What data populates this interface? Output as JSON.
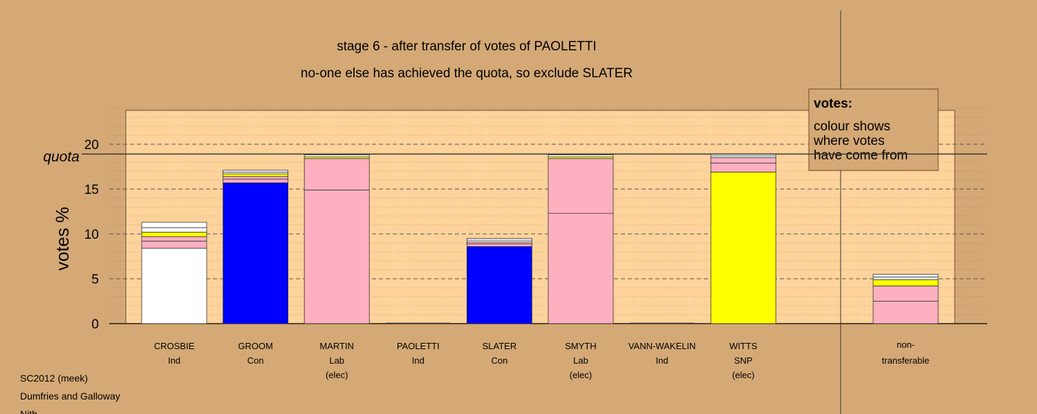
{
  "chart_data": {
    "type": "bar",
    "stacked": true,
    "title": "stage 6 - after transfer of votes of PAOLETTI",
    "subtitle": "no-one else has achieved the quota, so exclude SLATER",
    "ylabel": "votes %",
    "ylim": [
      0,
      24
    ],
    "yticks": [
      "0",
      "5",
      "10",
      "15",
      "20"
    ],
    "quota": {
      "label": "quota",
      "value": 18.9
    },
    "grid": true,
    "legend": {
      "placement": "top-right",
      "title": "votes:",
      "lines": [
        "colour shows",
        "where votes",
        "have come from"
      ]
    },
    "candidates": [
      {
        "name": "CROSBIE",
        "party": "Ind",
        "status": "",
        "segments": [
          {
            "value": 8.4,
            "color": "#ffffff"
          },
          {
            "value": 0.8,
            "color": "#ffb0c0"
          },
          {
            "value": 0.5,
            "color": "#ffb0c0"
          },
          {
            "value": 0.5,
            "color": "#ffff00"
          },
          {
            "value": 0.5,
            "color": "#ffffff"
          },
          {
            "value": 0.6,
            "color": "#ffffff"
          }
        ]
      },
      {
        "name": "GROOM",
        "party": "Con",
        "status": "",
        "segments": [
          {
            "value": 15.7,
            "color": "#0000ff"
          },
          {
            "value": 0.4,
            "color": "#ffb0c0"
          },
          {
            "value": 0.3,
            "color": "#ffb0c0"
          },
          {
            "value": 0.3,
            "color": "#ffff00"
          },
          {
            "value": 0.2,
            "color": "#ffffff"
          },
          {
            "value": 0.2,
            "color": "#ffffff"
          }
        ]
      },
      {
        "name": "MARTIN",
        "party": "Lab",
        "status": "(elec)",
        "segments": [
          {
            "value": 14.9,
            "color": "#ffb0c0"
          },
          {
            "value": 3.5,
            "color": "#ffb0c0"
          },
          {
            "value": 0.2,
            "color": "#ffff00"
          },
          {
            "value": 0.2,
            "color": "#ffffff"
          },
          {
            "value": 0.1,
            "color": "#ffffff"
          }
        ]
      },
      {
        "name": "PAOLETTI",
        "party": "Ind",
        "status": "",
        "segments": []
      },
      {
        "name": "SLATER",
        "party": "Con",
        "status": "",
        "segments": [
          {
            "value": 8.6,
            "color": "#0000ff"
          },
          {
            "value": 0.3,
            "color": "#ffb0c0"
          },
          {
            "value": 0.2,
            "color": "#ffb0c0"
          },
          {
            "value": 0.2,
            "color": "#ffffff"
          },
          {
            "value": 0.2,
            "color": "#ffffff"
          }
        ]
      },
      {
        "name": "SMYTH",
        "party": "Lab",
        "status": "(elec)",
        "segments": [
          {
            "value": 12.3,
            "color": "#ffb0c0"
          },
          {
            "value": 6.1,
            "color": "#ffb0c0"
          },
          {
            "value": 0.2,
            "color": "#ffff00"
          },
          {
            "value": 0.2,
            "color": "#ffffff"
          },
          {
            "value": 0.1,
            "color": "#ffffff"
          }
        ]
      },
      {
        "name": "VANN-WAKELIN",
        "party": "Ind",
        "status": "",
        "segments": []
      },
      {
        "name": "WITTS",
        "party": "SNP",
        "status": "(elec)",
        "segments": [
          {
            "value": 16.9,
            "color": "#ffff00"
          },
          {
            "value": 1.0,
            "color": "#ffb0c0"
          },
          {
            "value": 0.6,
            "color": "#ffb0c0"
          },
          {
            "value": 0.2,
            "color": "#ffffff"
          },
          {
            "value": 0.2,
            "color": "#ffffff"
          }
        ]
      }
    ],
    "nontransferable": {
      "label1": "non-",
      "label2": "transferable",
      "segments": [
        {
          "value": 2.5,
          "color": "#ffb0c0"
        },
        {
          "value": 1.7,
          "color": "#ffb0c0"
        },
        {
          "value": 0.7,
          "color": "#ffff00"
        },
        {
          "value": 0.3,
          "color": "#ffffff"
        },
        {
          "value": 0.3,
          "color": "#ffffff"
        }
      ]
    }
  },
  "footer": {
    "lines": [
      "SC2012 (meek)",
      "Dumfries and Galloway",
      "Nith"
    ]
  },
  "colors": {
    "background": "#d4a976",
    "panel": "#ffd39b",
    "legend_box": "#d4a976"
  }
}
